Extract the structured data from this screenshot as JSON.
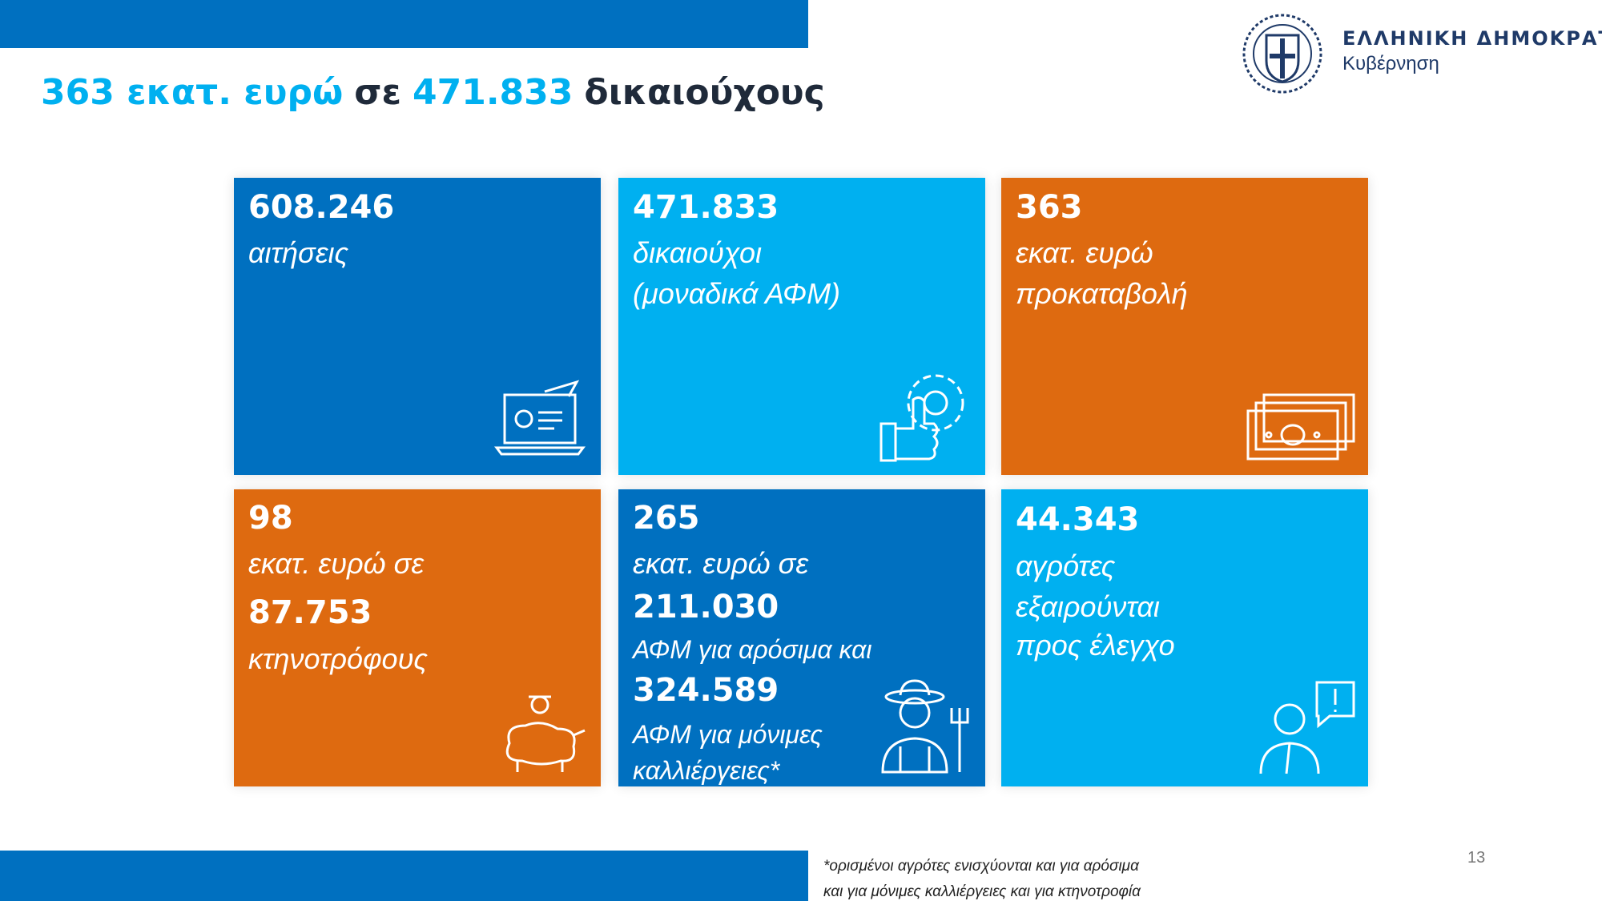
{
  "header": {
    "title_parts": [
      "363 εκατ. ευρώ",
      "σε",
      "471.833",
      "δικαιούχους"
    ]
  },
  "logo": {
    "line1": "ΕΛΛΗΝΙΚΗ ΔΗΜΟΚΡΑΤΙΑ",
    "line2": "Κυβέρνηση"
  },
  "tiles": [
    {
      "lines": [
        "608.246",
        "αιτήσεις"
      ]
    },
    {
      "lines": [
        "471.833",
        "δικαιούχοι",
        "(μοναδικά ΑΦΜ)"
      ]
    },
    {
      "lines": [
        "363",
        "εκατ. ευρώ",
        "προκαταβολή"
      ]
    },
    {
      "lines": [
        "98",
        "εκατ. ευρώ σε",
        "87.753",
        "κτηνοτρόφους"
      ]
    },
    {
      "lines": [
        "265",
        "εκατ. ευρώ σε",
        "211.030",
        "ΑΦΜ για αρόσιμα και",
        "324.589",
        "ΑΦΜ για μόνιμες",
        "καλλιέργειες*"
      ]
    },
    {
      "lines": [
        "44.343",
        "αγρότες",
        "εξαιρούνται",
        "προς έλεγχο"
      ]
    }
  ],
  "footnote": {
    "lines": [
      "*ορισμένοι αγρότες ενισχύονται και για αρόσιμα",
      "και για μόνιμες καλλιέργειες και για κτηνοτροφία"
    ]
  },
  "page_number": "13"
}
